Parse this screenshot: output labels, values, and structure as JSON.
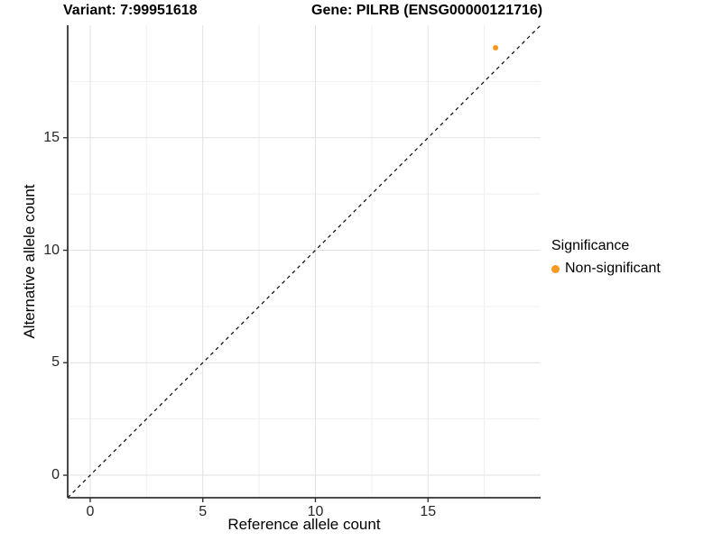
{
  "chart_data": {
    "type": "scatter",
    "titles": {
      "left": "Variant: 7:99951618",
      "right": "Gene: PILRB (ENSG00000121716)"
    },
    "xlabel": "Reference allele count",
    "ylabel": "Alternative allele count",
    "x_range": [
      -1,
      20
    ],
    "y_range": [
      -1,
      20
    ],
    "x_ticks": [
      0,
      5,
      10,
      15
    ],
    "y_ticks": [
      0,
      5,
      10,
      15
    ],
    "x_minor_ticks": [
      2.5,
      7.5,
      12.5,
      17.5
    ],
    "y_minor_ticks": [
      2.5,
      7.5,
      12.5,
      17.5
    ],
    "grid": true,
    "legend_position": "right",
    "reference_line": {
      "kind": "identity",
      "equation": "y = x",
      "style": "dashed",
      "color": "#000000"
    },
    "series": [
      {
        "name": "Non-significant",
        "color": "#F8981D",
        "points": [
          {
            "x": 18,
            "y": 19
          }
        ]
      }
    ],
    "colors": {
      "grid_major": "#E2E2E2",
      "grid_minor": "#EFEFEF",
      "axis_line": "#333333",
      "tick_mark": "#333333",
      "panel_background": "#FFFFFF"
    }
  },
  "legend": {
    "title": "Significance",
    "items": [
      {
        "label": "Non-significant",
        "color": "#F8981D",
        "marker": "circle"
      }
    ]
  }
}
